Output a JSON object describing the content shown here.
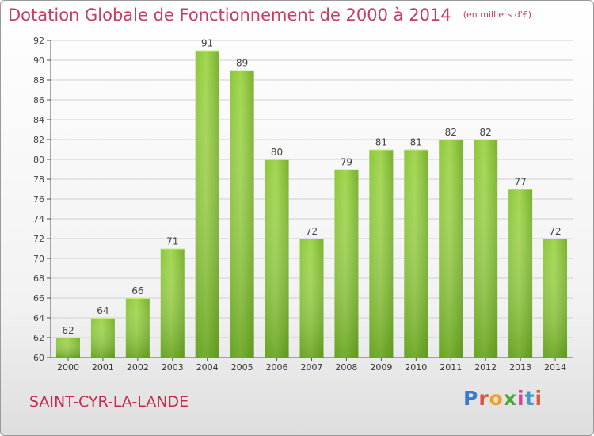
{
  "title": "Dotation Globale de Fonctionnement de 2000 à 2014",
  "unit": "(en milliers d'€)",
  "commune": "SAINT-CYR-LA-LANDE",
  "logo": {
    "p": "P",
    "r": "r",
    "o": "o",
    "x": "x",
    "i": "i",
    "t": "t",
    "i2": "i"
  },
  "colors": {
    "title": "#c83c5c",
    "bar_light": "#9ad24a",
    "bar_dark": "#5e9c14",
    "grid": "#d0d0d0"
  },
  "chart_data": {
    "type": "bar",
    "title": "Dotation Globale de Fonctionnement de 2000 à 2014",
    "xlabel": "",
    "ylabel": "",
    "categories": [
      "2000",
      "2001",
      "2002",
      "2003",
      "2004",
      "2005",
      "2006",
      "2007",
      "2008",
      "2009",
      "2010",
      "2011",
      "2012",
      "2013",
      "2014"
    ],
    "values": [
      62,
      64,
      66,
      71,
      91,
      89,
      80,
      72,
      79,
      81,
      81,
      82,
      82,
      77,
      72
    ],
    "ylim": [
      60,
      92
    ],
    "yticks": [
      60,
      62,
      64,
      66,
      68,
      70,
      72,
      74,
      76,
      78,
      80,
      82,
      84,
      86,
      88,
      90,
      92
    ],
    "grid": true,
    "legend": "none"
  }
}
